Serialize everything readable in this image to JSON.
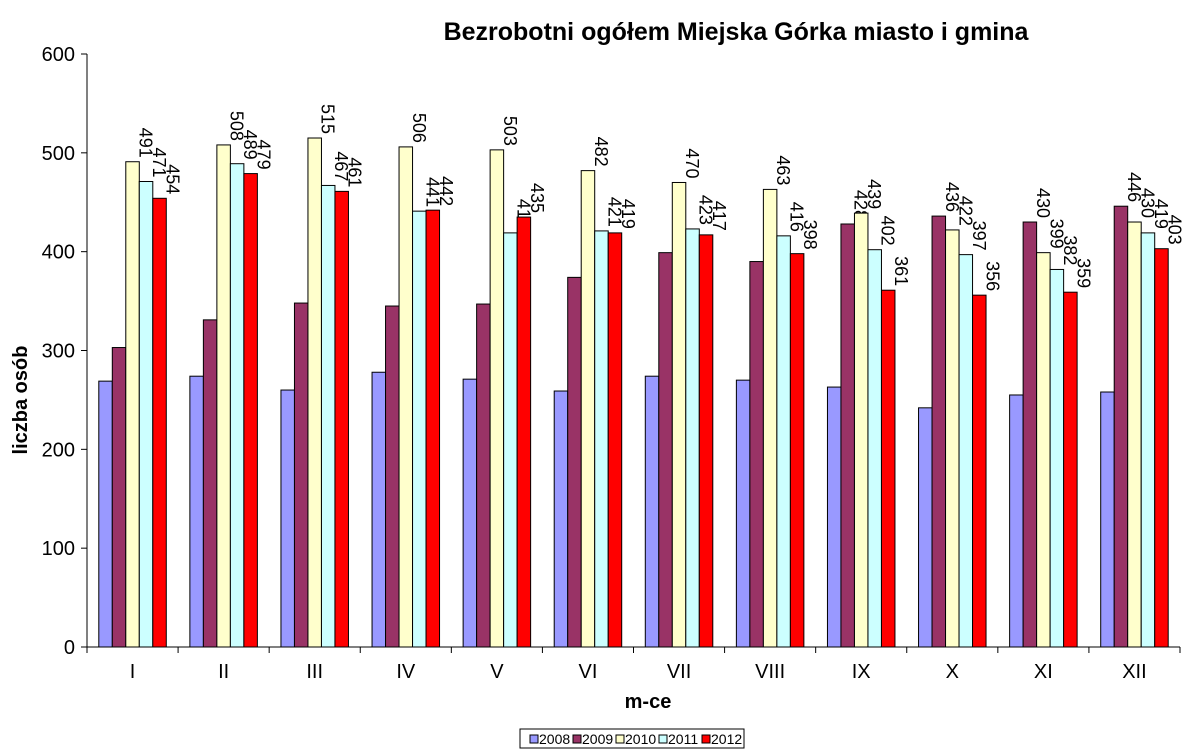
{
  "chart_data": {
    "type": "bar",
    "title": "Bezrobotni ogółem Miejska Górka miasto i gmina",
    "x_label": "m-ce",
    "y_label": "liczba osób",
    "categories": [
      "I",
      "II",
      "III",
      "IV",
      "V",
      "VI",
      "VII",
      "VIII",
      "IX",
      "X",
      "XI",
      "XII"
    ],
    "series": [
      {
        "name": "2008",
        "color": "#9999ff",
        "values": [
          269,
          274,
          260,
          278,
          271,
          259,
          274,
          270,
          263,
          242,
          255,
          258
        ]
      },
      {
        "name": "2009",
        "color": "#993366",
        "values": [
          303,
          331,
          348,
          345,
          347,
          374,
          399,
          390,
          428,
          436,
          430,
          446
        ]
      },
      {
        "name": "2010",
        "color": "#ffffcc",
        "values": [
          491,
          508,
          515,
          506,
          503,
          482,
          470,
          463,
          439,
          422,
          399,
          430
        ]
      },
      {
        "name": "2011",
        "color": "#ccffff",
        "values": [
          471,
          489,
          467,
          441,
          419,
          421,
          423,
          416,
          402,
          397,
          382,
          419
        ]
      },
      {
        "name": "2012",
        "color": "#ff0000",
        "values": [
          454,
          479,
          461,
          442,
          435,
          419,
          417,
          398,
          361,
          356,
          359,
          403
        ]
      }
    ],
    "ylim": [
      0,
      600
    ],
    "yticks": [
      0,
      100,
      200,
      300,
      400,
      500,
      600
    ],
    "legend": "bottom"
  }
}
